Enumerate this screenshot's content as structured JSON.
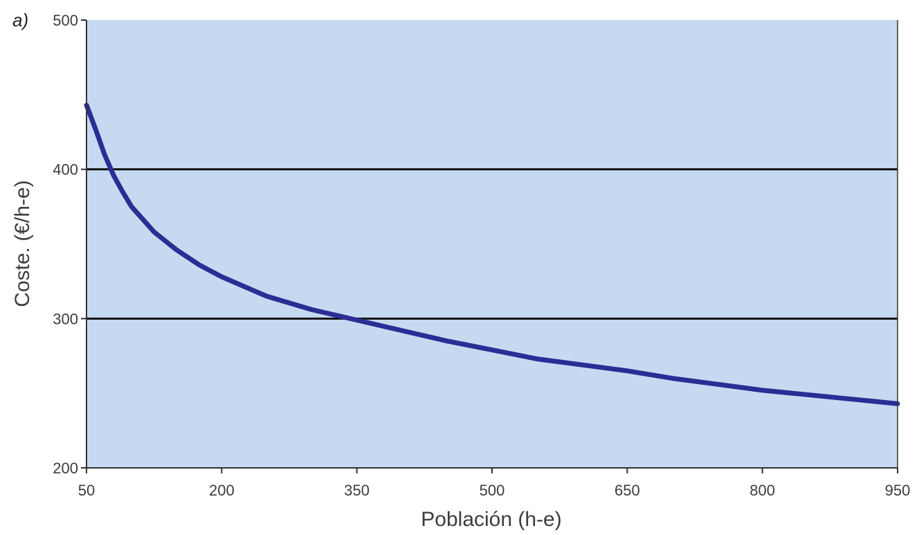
{
  "chart_data": {
    "type": "line",
    "panel_label": "a)",
    "xlabel": "Población (h-e)",
    "ylabel": "Coste. (€/h-e)",
    "xlim": [
      50,
      950
    ],
    "ylim": [
      200,
      500
    ],
    "x_ticks": [
      50,
      200,
      350,
      500,
      650,
      800,
      950
    ],
    "y_ticks": [
      200,
      300,
      400,
      500
    ],
    "grid": "horizontal lines at 300 and 400",
    "legend": "none",
    "colors": {
      "plot_background": "#c5daf0",
      "line": "#2b2d95",
      "gridline": "#111111",
      "axis": "#333333"
    },
    "series": [
      {
        "x": [
          50,
          60,
          70,
          80,
          90,
          100,
          125,
          150,
          175,
          200,
          250,
          300,
          350,
          400,
          450,
          500,
          550,
          600,
          650,
          700,
          750,
          800,
          850,
          900,
          950
        ],
        "y": [
          443,
          427,
          410,
          396,
          385,
          375,
          358,
          346,
          336,
          328,
          315,
          306,
          299,
          292,
          285,
          279,
          273,
          269,
          265,
          260,
          256,
          252,
          249,
          246,
          243
        ]
      }
    ]
  }
}
